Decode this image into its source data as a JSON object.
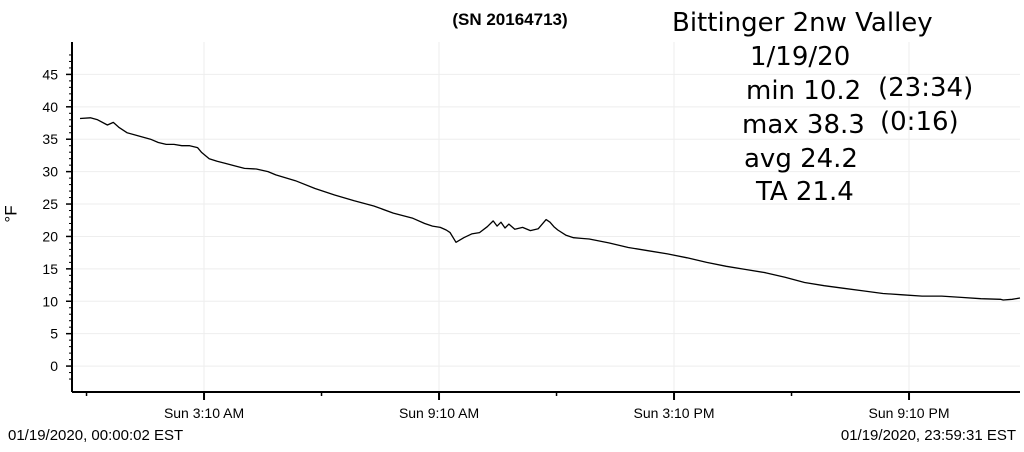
{
  "serial": "(SN 20164713)",
  "info": {
    "station": "Bittinger 2nw Valley",
    "date": "1/19/20",
    "min_label": "min 10.2",
    "min_time": "(23:34)",
    "max_label": "max 38.3",
    "max_time": "(0:16)",
    "avg_label": "avg  24.2",
    "ta_label": "TA 21.4"
  },
  "range": {
    "start": "01/19/2020, 00:00:02 EST",
    "end": "01/19/2020, 23:59:31 EST"
  },
  "colors": {
    "line": "#000000",
    "grid": "#eeeeee",
    "axis": "#000000"
  },
  "chart_data": {
    "type": "line",
    "title": "",
    "xlabel": "",
    "ylabel": "°F",
    "ylim": [
      -4,
      50
    ],
    "yticks": [
      0,
      5,
      10,
      15,
      20,
      25,
      30,
      35,
      40,
      45
    ],
    "xlim_hours": [
      0,
      24
    ],
    "xticks": [
      {
        "hour": 3.1667,
        "label": "Sun 3:10 AM"
      },
      {
        "hour": 9.1667,
        "label": "Sun 9:10 AM"
      },
      {
        "hour": 15.1667,
        "label": "Sun 3:10 PM"
      },
      {
        "hour": 21.1667,
        "label": "Sun 9:10 PM"
      }
    ],
    "grid": true,
    "series": [
      {
        "name": "",
        "x_hours": [
          0,
          0.2667,
          0.45,
          0.7,
          0.85,
          1.0,
          1.2,
          1.5,
          1.8,
          2.0,
          2.2,
          2.4,
          2.6,
          2.8,
          3.0,
          3.1,
          3.3,
          3.5,
          3.7,
          4.0,
          4.2,
          4.5,
          4.8,
          5.0,
          5.5,
          6.0,
          6.5,
          7.0,
          7.5,
          8.0,
          8.5,
          8.8,
          9.0,
          9.2,
          9.35,
          9.45,
          9.6,
          9.8,
          10.0,
          10.2,
          10.4,
          10.55,
          10.65,
          10.75,
          10.85,
          10.95,
          11.1,
          11.3,
          11.5,
          11.7,
          11.9,
          12.0,
          12.1,
          12.2,
          12.4,
          12.6,
          12.8,
          13.0,
          13.5,
          14.0,
          14.5,
          15.0,
          15.5,
          16.0,
          16.5,
          17.0,
          17.5,
          18.0,
          18.5,
          19.0,
          19.5,
          20.0,
          20.5,
          21.0,
          21.5,
          22.0,
          22.5,
          23.0,
          23.5,
          23.57,
          23.8,
          24.0
        ],
        "values": [
          38.2,
          38.3,
          38.0,
          37.2,
          37.6,
          36.8,
          36.0,
          35.5,
          35.0,
          34.5,
          34.2,
          34.2,
          34.0,
          34.0,
          33.7,
          33.0,
          32.0,
          31.6,
          31.3,
          30.8,
          30.5,
          30.4,
          30.0,
          29.5,
          28.6,
          27.4,
          26.4,
          25.5,
          24.7,
          23.6,
          22.8,
          22.0,
          21.6,
          21.4,
          21.0,
          20.6,
          19.1,
          19.8,
          20.4,
          20.6,
          21.5,
          22.4,
          21.6,
          22.2,
          21.3,
          21.9,
          21.1,
          21.4,
          20.9,
          21.2,
          22.6,
          22.2,
          21.5,
          21.0,
          20.2,
          19.8,
          19.7,
          19.6,
          19.0,
          18.3,
          17.8,
          17.3,
          16.7,
          16.0,
          15.4,
          14.9,
          14.4,
          13.7,
          12.9,
          12.4,
          12.0,
          11.6,
          11.2,
          11.0,
          10.8,
          10.8,
          10.6,
          10.4,
          10.3,
          10.2,
          10.3,
          10.5
        ]
      }
    ]
  }
}
